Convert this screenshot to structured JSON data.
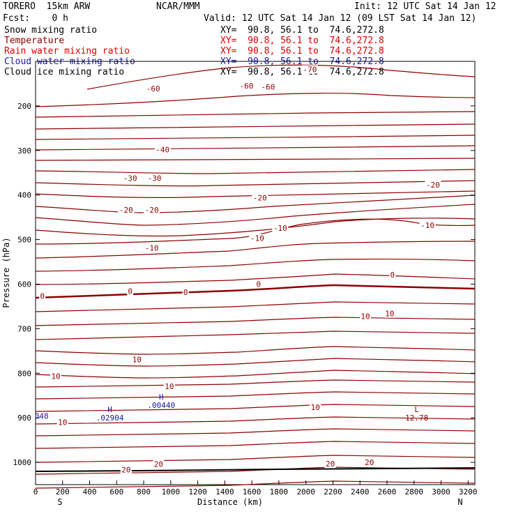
{
  "header": {
    "model": "TORERO  15km ARW",
    "center": "NCAR/MMM",
    "init": "Init: 12 UTC Sat 14 Jan 12",
    "fcst": "Fcst:    0 h",
    "valid": "Valid: 12 UTC Sat 14 Jan 12 (09 LST Sat 14 Jan 12)"
  },
  "fields": [
    {
      "name": "Snow mixing ratio",
      "xy": "XY=  90.8, 56.1 to  74.6,272.8",
      "color": "#000000"
    },
    {
      "name": "Temperature",
      "xy": "XY=  90.8, 56.1 to  74.6,272.8",
      "color": "#8b0000"
    },
    {
      "name": "Rain water mixing ratio",
      "xy": "XY=  90.8, 56.1 to  74.6,272.8",
      "color": "#e00000"
    },
    {
      "name": "Cloud water mixing ratio",
      "xy": "XY=  90.8, 56.1 to  74.6,272.8",
      "color": "#1a1aa0"
    },
    {
      "name": "Cloud ice mixing ratio",
      "xy": "XY=  90.8, 56.1 to  74.6,272.8",
      "color": "#000000"
    }
  ],
  "chart_data": {
    "type": "contour",
    "xlabel": "Distance (km)",
    "ylabel": "Pressure (hPa)",
    "xlim": [
      0,
      3250
    ],
    "ylim": [
      1050,
      100
    ],
    "x_ticks": [
      0,
      200,
      400,
      600,
      800,
      1000,
      1200,
      1400,
      1600,
      1800,
      2000,
      2200,
      2400,
      2600,
      2800,
      3000,
      3200
    ],
    "x_tick_labels": [
      "0",
      "200",
      "400",
      "600",
      "800",
      "1000",
      "1200",
      "1400",
      "1600",
      "1800",
      "2000",
      "2200",
      "2400",
      "2600",
      "2800",
      "3000",
      "3200"
    ],
    "y_ticks": [
      200,
      300,
      400,
      500,
      600,
      700,
      800,
      900,
      1000
    ],
    "y_tick_labels": [
      "200",
      "300",
      "400",
      "500",
      "600",
      "700",
      "800",
      "900",
      "1000"
    ],
    "x_end_labels": {
      "left": "S",
      "right": "N"
    },
    "temperature_color": "#8b0000",
    "contour_labels": [
      {
        "text": "-70",
        "x": 2030,
        "y": 118
      },
      {
        "text": "-60",
        "x": 870,
        "y": 161
      },
      {
        "text": "-60",
        "x": 1560,
        "y": 155
      },
      {
        "text": "-60",
        "x": 1720,
        "y": 157
      },
      {
        "text": "-40",
        "x": 940,
        "y": 298
      },
      {
        "text": "-30",
        "x": 700,
        "y": 362
      },
      {
        "text": "-30",
        "x": 880,
        "y": 362
      },
      {
        "text": "-20",
        "x": 2940,
        "y": 377
      },
      {
        "text": "-20",
        "x": 1660,
        "y": 406
      },
      {
        "text": "-20",
        "x": 670,
        "y": 433
      },
      {
        "text": "-20",
        "x": 860,
        "y": 433
      },
      {
        "text": "-10",
        "x": 1810,
        "y": 474
      },
      {
        "text": "-10",
        "x": 2900,
        "y": 468
      },
      {
        "text": "-10",
        "x": 1640,
        "y": 497
      },
      {
        "text": "-10",
        "x": 860,
        "y": 519
      },
      {
        "text": "0",
        "x": 2640,
        "y": 579
      },
      {
        "text": "0",
        "x": 1650,
        "y": 600
      },
      {
        "text": "0",
        "x": 700,
        "y": 616
      },
      {
        "text": "0",
        "x": 1110,
        "y": 618
      },
      {
        "text": "0",
        "x": 50,
        "y": 627
      },
      {
        "text": "10",
        "x": 2620,
        "y": 666
      },
      {
        "text": "10",
        "x": 2440,
        "y": 672
      },
      {
        "text": "10",
        "x": 750,
        "y": 769
      },
      {
        "text": "10",
        "x": 150,
        "y": 807
      },
      {
        "text": "10",
        "x": 990,
        "y": 829
      },
      {
        "text": "10",
        "x": 2070,
        "y": 876
      },
      {
        "text": "10",
        "x": 200,
        "y": 910
      },
      {
        "text": "20",
        "x": 2470,
        "y": 1000
      },
      {
        "text": "20",
        "x": 2180,
        "y": 1003
      },
      {
        "text": "20",
        "x": 910,
        "y": 1004
      },
      {
        "text": "20",
        "x": 670,
        "y": 1016
      }
    ],
    "extrema": [
      {
        "type": "H",
        "value": ".00440",
        "x": 930,
        "y": 862,
        "color": "#1a1aa0"
      },
      {
        "type": "H",
        "value": ".02904",
        "x": 550,
        "y": 890,
        "color": "#1a1aa0"
      },
      {
        "type": "L",
        "value": "12.78",
        "x": 2820,
        "y": 890,
        "color": "#8b0000"
      }
    ],
    "edge_labels": [
      {
        "text": "048",
        "x": 45,
        "y": 896,
        "color": "#1a1aa0"
      }
    ]
  }
}
